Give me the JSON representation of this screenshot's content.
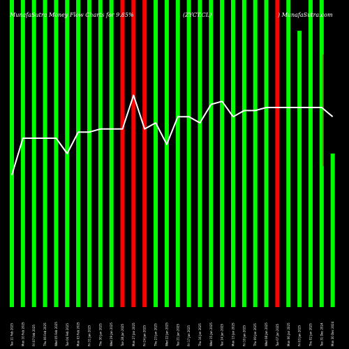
{
  "header": {
    "left": "MunafaSutra Money Flow Charts for 9.85%",
    "middle": "(ZYCT.CL)",
    "right": ") MunafaSutra.com"
  },
  "colors": {
    "background": "#000000",
    "up": "#00ff00",
    "down": "#ff0000",
    "line": "#ffffff",
    "accent": "#8b3a1a"
  },
  "chart_data": {
    "type": "bar",
    "series": [
      {
        "values": [
          100,
          100,
          100,
          100,
          100,
          100,
          100,
          100,
          100,
          100,
          100,
          100,
          100,
          100,
          100,
          100,
          100,
          100,
          100,
          100,
          100,
          100,
          100,
          100,
          100,
          100,
          90,
          100,
          100,
          50
        ],
        "colors": [
          "up",
          "up",
          "up",
          "up",
          "up",
          "up",
          "up",
          "up",
          "up",
          "up",
          "down",
          "down",
          "down",
          "up",
          "up",
          "up",
          "up",
          "up",
          "up",
          "up",
          "up",
          "up",
          "up",
          "up",
          "down",
          "up",
          "up",
          "up",
          "up",
          "up"
        ]
      },
      {
        "type": "line",
        "values": [
          43,
          55,
          55,
          55,
          55,
          50,
          57,
          57,
          58,
          58,
          58,
          69,
          58,
          60,
          53,
          62,
          62,
          60,
          66,
          67,
          62,
          64,
          64,
          65,
          65,
          65,
          65,
          65,
          65,
          62
        ]
      }
    ],
    "categories": [
      "Tue 11 Feb 2025",
      "Mon 10 Feb 2025",
      "Fri 07 Feb 2025",
      "Thu 06 Feb 2025",
      "Wed 05 Feb 2025",
      "Tue 04 Feb 2025",
      "Mon 03 Feb 2025",
      "Fri 31 Jan 2025",
      "Thu 30 Jan 2025",
      "Wed 29 Jan 2025",
      "Tue 28 Jan 2025",
      "Mon 27 Jan 2025",
      "Fri 24 Jan 2025",
      "Thu 23 Jan 2025",
      "Wed 22 Jan 2025",
      "Tue 21 Jan 2025",
      "Fri 17 Jan 2025",
      "Thu 16 Jan 2025",
      "Wed 15 Jan 2025",
      "Tue 14 Jan 2025",
      "Mon 13 Jan 2025",
      "Fri 10 Jan 2025",
      "Thu 09 Jan 2025",
      "Wed 08 Jan 2025",
      "Tue 07 Jan 2025",
      "Mon 06 Jan 2025",
      "Fri 03 Jan 2025",
      "Thu 02 Jan 2025",
      "Tue 31 Dec 2024",
      "Mon 30 Dec 2024"
    ],
    "ylim": [
      0,
      100
    ]
  }
}
